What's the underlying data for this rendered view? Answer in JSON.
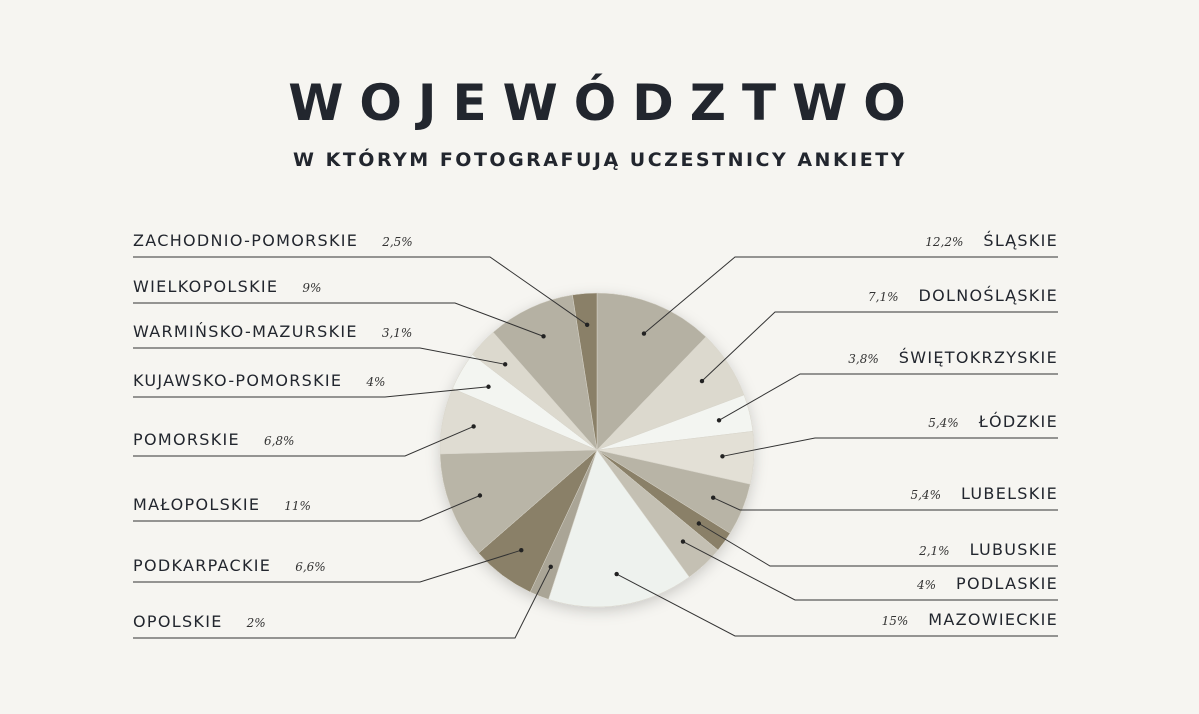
{
  "chart_data": {
    "type": "pie",
    "title": "WOJEWÓDZTWO",
    "subtitle": "W KTÓRYM FOTOGRAFUJĄ UCZESTNICY ANKIETY",
    "categories": [
      "ŚLĄSKIE",
      "DOLNOŚLĄSKIE",
      "ŚWIĘTOKRZYSKIE",
      "ŁÓDZKIE",
      "LUBELSKIE",
      "LUBUSKIE",
      "PODLASKIE",
      "MAZOWIECKIE",
      "OPOLSKIE",
      "PODKARPACKIE",
      "MAŁOPOLSKIE",
      "POMORSKIE",
      "KUJAWSKO-POMORSKIE",
      "WARMIŃSKO-MAZURSKIE",
      "WIELKOPOLSKIE",
      "ZACHODNIO-POMORSKIE"
    ],
    "values": [
      12.2,
      7.1,
      3.8,
      5.4,
      5.4,
      2.1,
      4,
      15,
      2,
      6.6,
      11,
      6.8,
      4,
      3.1,
      9,
      2.5
    ],
    "value_labels": [
      "12,2%",
      "7,1%",
      "3,8%",
      "5,4%",
      "5,4%",
      "2,1%",
      "4%",
      "15%",
      "2%",
      "6,6%",
      "11%",
      "6,8%",
      "4%",
      "3,1%",
      "9%",
      "2,5%"
    ],
    "colors": [
      "#b5b1a3",
      "#dcd9ce",
      "#f3f5f1",
      "#e3e0d6",
      "#b8b4a6",
      "#8a8068",
      "#c4c0b3",
      "#eef2ee",
      "#aaa596",
      "#8a8068",
      "#b9b5a7",
      "#dfdcd2",
      "#f3f5f1",
      "#dcd9ce",
      "#b5b1a3",
      "#8a8068"
    ]
  }
}
